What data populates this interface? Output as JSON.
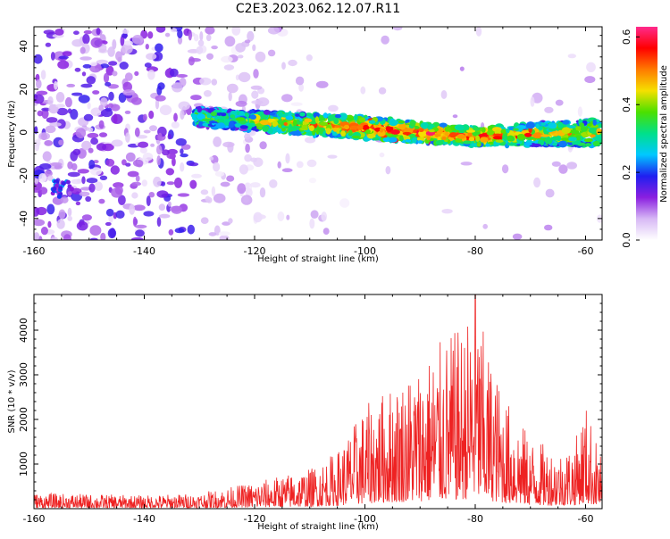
{
  "title": "C2E3.2023.062.12.07.R11",
  "chart_data": [
    {
      "type": "heatmap",
      "xlabel": "Height of straight line (km)",
      "ylabel": "Frequency (Hz)",
      "xlim": [
        -160,
        -57
      ],
      "ylim": [
        -50,
        49
      ],
      "xticks": [
        -160,
        -140,
        -120,
        -100,
        -80,
        -60
      ],
      "yticks": [
        -40,
        -20,
        0,
        20,
        40
      ],
      "colorbar": {
        "label": "Normalized spectral amplitude",
        "range": [
          0.0,
          0.63
        ],
        "ticks": [
          "0.0",
          "0.2",
          "0.4",
          "0.6"
        ],
        "colors": [
          "#ffffff",
          "#d7b8f5",
          "#8a1fe0",
          "#1f1ff0",
          "#00c8ff",
          "#00e08a",
          "#4be000",
          "#f5e000",
          "#ff7a00",
          "#ff0000",
          "#ff2a8c"
        ]
      },
      "features": {
        "noise_region_x": [
          -160,
          -120
        ],
        "noise_amplitude_range": [
          0.02,
          0.18
        ],
        "signal_band": {
          "x": [
            -131,
            -57
          ],
          "center_hz": [
            7,
            2,
            -2,
            0
          ],
          "center_x": [
            -131,
            -100,
            -80,
            -57
          ],
          "width_hz": [
            8,
            10,
            8,
            12
          ],
          "peak_amplitude_x": [
            -95,
            -75
          ],
          "peak_amplitude": 0.6
        },
        "isolated_blob": {
          "x": -155,
          "y": -26,
          "amplitude": 0.25
        }
      }
    },
    {
      "type": "line",
      "xlabel": "Height of straight line (km)",
      "ylabel": "SNR (10 * v/v)",
      "xlim": [
        -160,
        -57
      ],
      "ylim": [
        0,
        4800
      ],
      "xticks": [
        -160,
        -140,
        -120,
        -100,
        -80,
        -60
      ],
      "yticks": [
        1000,
        2000,
        3000,
        4000
      ],
      "color": "#ee2222",
      "envelope": {
        "x": [
          -160,
          -140,
          -130,
          -120,
          -110,
          -105,
          -100,
          -95,
          -90,
          -85,
          -82,
          -80,
          -78,
          -75,
          -70,
          -65,
          -62,
          -60,
          -57
        ],
        "max": [
          350,
          300,
          350,
          600,
          900,
          1300,
          2300,
          2800,
          3300,
          3900,
          4100,
          4800,
          3700,
          2600,
          1600,
          1300,
          1500,
          2400,
          1100
        ]
      },
      "peak": {
        "x": -80,
        "y": 4800
      }
    }
  ]
}
